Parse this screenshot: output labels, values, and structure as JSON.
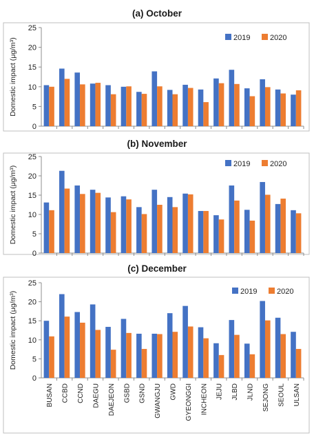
{
  "colors": {
    "2019": "#4472C4",
    "2020": "#ED7D31",
    "axis": "#8c8c8c",
    "frame": "#bfbfbf"
  },
  "chart_data": [
    {
      "type": "bar",
      "title": "(a) October",
      "ylabel": "Domestic impact (μg/m³)",
      "xlabel": "",
      "ylim": [
        0,
        25
      ],
      "yticks": [
        "0",
        "5",
        "10",
        "15",
        "20",
        "25"
      ],
      "grid": false,
      "legend": "top-right",
      "categories": [
        "BUSAN",
        "CCBD",
        "CCND",
        "DAEGU",
        "DAEJEON",
        "GSBD",
        "GSND",
        "GWANGJU",
        "GWD",
        "GYEONGGI",
        "INCHEON",
        "JEJU",
        "JLBD",
        "JLND",
        "SEJONG",
        "SEOUL",
        "ULSAN"
      ],
      "series": [
        {
          "name": "2019",
          "values": [
            10.4,
            14.6,
            13.6,
            10.8,
            10.4,
            10.0,
            8.7,
            13.9,
            9.2,
            10.5,
            9.3,
            12.1,
            14.3,
            9.6,
            11.9,
            9.3,
            8.0
          ]
        },
        {
          "name": "2020",
          "values": [
            10.0,
            12.0,
            10.6,
            11.0,
            8.1,
            10.1,
            8.2,
            10.1,
            8.1,
            9.7,
            6.1,
            10.9,
            10.7,
            7.6,
            9.9,
            8.3,
            9.1
          ]
        }
      ]
    },
    {
      "type": "bar",
      "title": "(b) November",
      "ylabel": "Domestic impact (μg/m³)",
      "xlabel": "",
      "ylim": [
        0,
        25
      ],
      "yticks": [
        "0",
        "5",
        "10",
        "15",
        "20",
        "25"
      ],
      "grid": false,
      "legend": "top-right",
      "categories": [
        "BUSAN",
        "CCBD",
        "CCND",
        "DAEGU",
        "DAEJEON",
        "GSBD",
        "GSND",
        "GWANGJU",
        "GWD",
        "GYEONGGI",
        "INCHEON",
        "JEJU",
        "JLBD",
        "JLND",
        "SEJONG",
        "SEOUL",
        "ULSAN"
      ],
      "series": [
        {
          "name": "2019",
          "values": [
            13.1,
            21.3,
            17.5,
            16.4,
            14.4,
            14.7,
            11.9,
            16.4,
            14.5,
            15.4,
            10.9,
            9.8,
            17.5,
            11.2,
            18.4,
            12.7,
            11.1
          ]
        },
        {
          "name": "2020",
          "values": [
            11.1,
            16.7,
            15.3,
            15.6,
            10.6,
            13.9,
            10.1,
            12.5,
            11.9,
            15.2,
            10.9,
            8.7,
            13.6,
            8.4,
            15.1,
            14.1,
            10.3
          ]
        }
      ]
    },
    {
      "type": "bar",
      "title": "(c) December",
      "ylabel": "Domestic impact (μg/m³)",
      "xlabel": "",
      "ylim": [
        0,
        25
      ],
      "yticks": [
        "0",
        "5",
        "10",
        "15",
        "20",
        "25"
      ],
      "grid": false,
      "legend": "top-right",
      "categories": [
        "BUSAN",
        "CCBD",
        "CCND",
        "DAEGU",
        "DAEJEON",
        "GSBD",
        "GSND",
        "GWANGJU",
        "GWD",
        "GYEONGGI",
        "INCHEON",
        "JEJU",
        "JLBD",
        "JLND",
        "SEJONG",
        "SEOUL",
        "ULSAN"
      ],
      "series": [
        {
          "name": "2019",
          "values": [
            15.0,
            22.0,
            17.3,
            19.3,
            13.4,
            15.5,
            11.6,
            11.6,
            17.0,
            18.9,
            13.3,
            9.1,
            15.2,
            9.0,
            20.2,
            15.8,
            12.1
          ]
        },
        {
          "name": "2020",
          "values": [
            10.9,
            16.1,
            14.5,
            12.6,
            7.4,
            11.8,
            7.6,
            11.5,
            12.1,
            13.5,
            10.4,
            6.0,
            11.3,
            6.2,
            15.1,
            11.5,
            7.6
          ]
        }
      ]
    }
  ]
}
